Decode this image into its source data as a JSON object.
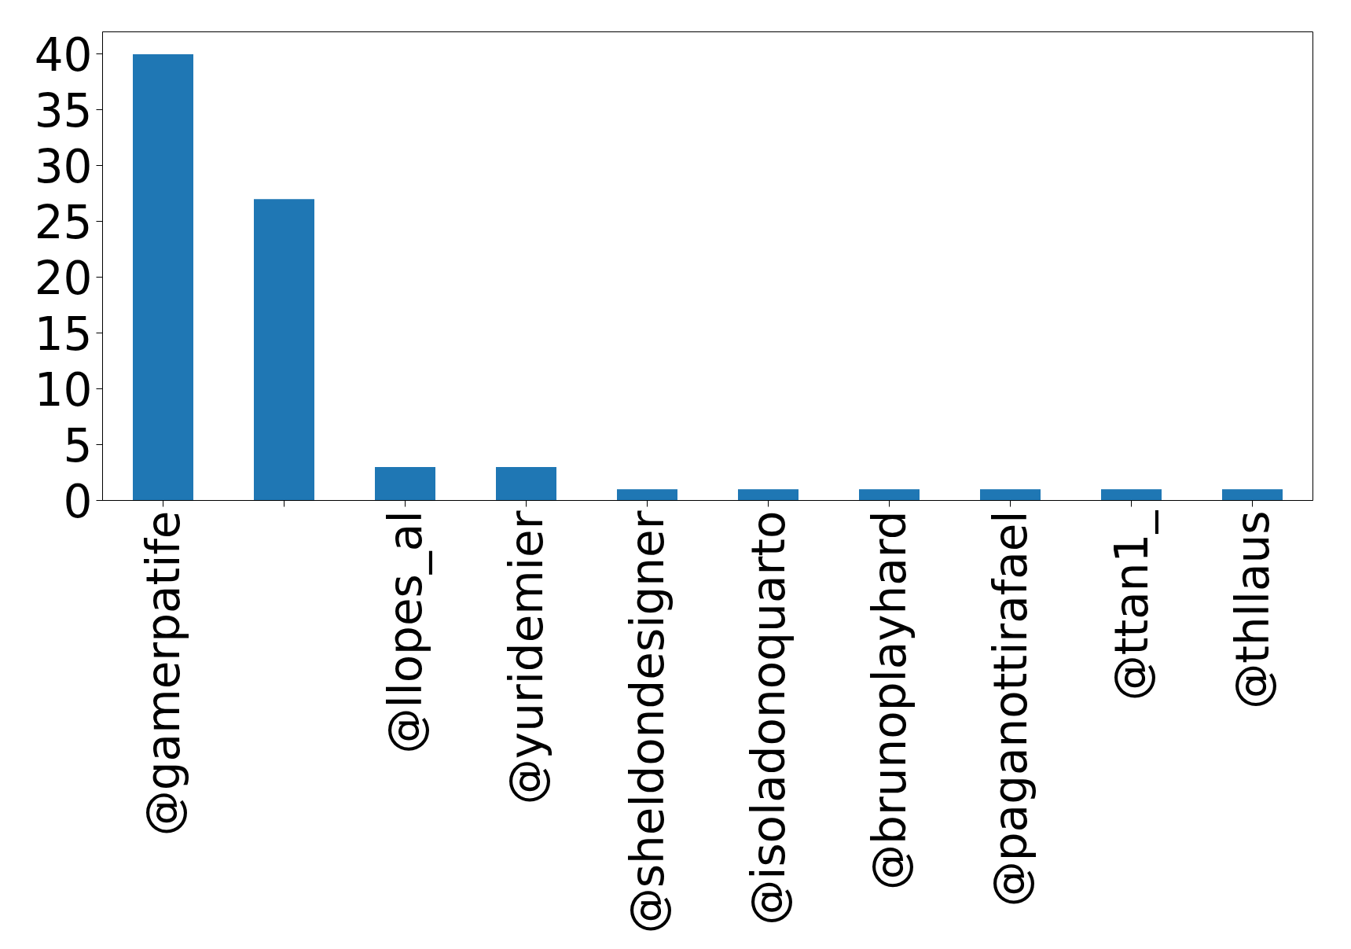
{
  "chart_data": {
    "type": "bar",
    "categories": [
      "@gamerpatife",
      null,
      "@llopes_al",
      "@yuridemier",
      "@sheldondesigner",
      "@isoladonoquarto",
      "@brunoplayhard",
      "@paganottirafael",
      "@ttan1_",
      "@thllaus"
    ],
    "values": [
      40,
      27,
      3,
      3,
      1,
      1,
      1,
      1,
      1,
      1
    ],
    "color": "#1f77b4",
    "ylim": [
      0,
      42
    ],
    "yticks": [
      0,
      5,
      10,
      15,
      20,
      25,
      30,
      35,
      40
    ],
    "grid": false
  }
}
